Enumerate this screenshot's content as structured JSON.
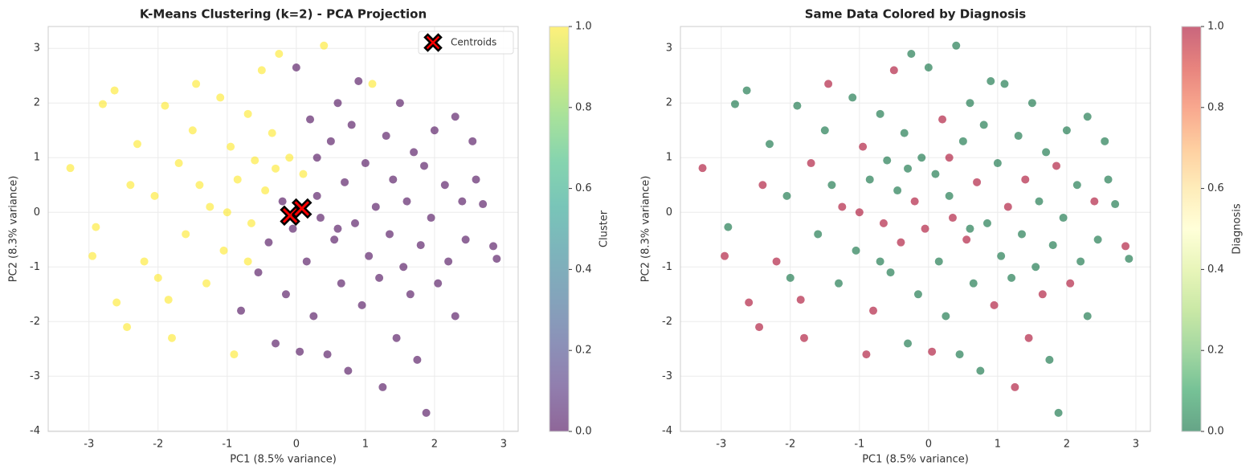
{
  "chart_data": [
    {
      "type": "scatter",
      "title": "K-Means Clustering (k=2) - PCA Projection",
      "xlabel": "PC1 (8.5% variance)",
      "ylabel": "PC2 (8.3% variance)",
      "x": [
        -3.27,
        -2.95,
        -2.9,
        -2.8,
        -2.63,
        -2.6,
        -2.45,
        -2.4,
        -2.3,
        -2.2,
        -2.05,
        -1.9,
        -1.85,
        -1.8,
        -1.7,
        -1.6,
        -1.5,
        -1.45,
        -1.3,
        -1.25,
        -1.1,
        -1.05,
        -0.95,
        -0.9,
        -0.85,
        -0.8,
        -0.7,
        -0.65,
        -0.6,
        -0.55,
        -0.5,
        -0.45,
        -0.4,
        -0.35,
        -0.3,
        -0.25,
        -0.2,
        -0.15,
        -0.1,
        -0.05,
        0.0,
        0.05,
        0.1,
        0.15,
        0.2,
        0.25,
        0.3,
        0.35,
        0.4,
        0.45,
        0.5,
        0.55,
        0.6,
        0.65,
        0.7,
        0.75,
        0.8,
        0.85,
        0.9,
        0.95,
        1.0,
        1.05,
        1.1,
        1.15,
        1.2,
        1.25,
        1.3,
        1.35,
        1.4,
        1.45,
        1.5,
        1.55,
        1.6,
        1.65,
        1.7,
        1.75,
        1.8,
        1.85,
        1.88,
        1.95,
        2.0,
        2.05,
        2.15,
        2.2,
        2.3,
        2.3,
        2.4,
        2.45,
        2.55,
        2.6,
        2.7,
        2.85,
        2.9,
        -1.0,
        -0.7,
        -1.4,
        0.3,
        -0.3,
        0.6,
        -2.0
      ],
      "y": [
        0.81,
        -0.8,
        -0.27,
        1.98,
        2.23,
        -1.65,
        -2.1,
        0.5,
        1.25,
        -0.9,
        0.3,
        1.95,
        -1.6,
        -2.3,
        0.9,
        -0.4,
        1.5,
        2.35,
        -1.3,
        0.1,
        2.1,
        -0.7,
        1.2,
        -2.6,
        0.6,
        -1.8,
        1.8,
        -0.2,
        0.95,
        -1.1,
        2.6,
        0.4,
        -0.55,
        1.45,
        -2.4,
        2.9,
        0.2,
        -1.5,
        1.0,
        -0.3,
        2.65,
        -2.55,
        0.7,
        -0.9,
        1.7,
        -1.9,
        0.3,
        -0.1,
        3.05,
        -2.6,
        1.3,
        -0.5,
        2.0,
        -1.3,
        0.55,
        -2.9,
        1.6,
        -0.2,
        2.4,
        -1.7,
        0.9,
        -0.8,
        2.35,
        0.1,
        -1.2,
        -3.2,
        1.4,
        -0.4,
        0.6,
        -2.3,
        2.0,
        -1.0,
        0.2,
        -1.5,
        1.1,
        -2.7,
        -0.6,
        0.85,
        -3.67,
        -0.1,
        1.5,
        -1.3,
        0.5,
        -0.9,
        1.75,
        -1.9,
        0.2,
        -0.5,
        1.3,
        0.6,
        0.15,
        -0.62,
        -0.85,
        0.0,
        -0.9,
        0.5,
        1.0,
        0.8,
        -0.3,
        -1.2
      ],
      "c": [
        1,
        1,
        1,
        1,
        1,
        1,
        1,
        1,
        1,
        1,
        1,
        1,
        1,
        1,
        1,
        1,
        1,
        1,
        1,
        1,
        1,
        1,
        1,
        1,
        1,
        0,
        1,
        1,
        1,
        0,
        1,
        1,
        0,
        1,
        0,
        1,
        0,
        0,
        1,
        0,
        0,
        0,
        1,
        0,
        0,
        0,
        0,
        0,
        1,
        0,
        0,
        0,
        0,
        0,
        0,
        0,
        0,
        0,
        0,
        0,
        0,
        0,
        1,
        0,
        0,
        0,
        0,
        0,
        0,
        0,
        0,
        0,
        0,
        0,
        0,
        0,
        0,
        0,
        0,
        0,
        0,
        0,
        0,
        0,
        0,
        0,
        0,
        0,
        0,
        0,
        0,
        0,
        0,
        1,
        1,
        1,
        0,
        1,
        0,
        1
      ],
      "colormap": [
        "#440154",
        "#482878",
        "#3e4989",
        "#31688e",
        "#26828e",
        "#1f9e89",
        "#35b779",
        "#6ece58",
        "#b5de2b",
        "#fde725"
      ],
      "clim": [
        0,
        1
      ],
      "colorbar_label": "Cluster",
      "cticks": [
        {
          "value": 0,
          "label": "0.0"
        },
        {
          "value": 0.2,
          "label": "0.2"
        },
        {
          "value": 0.4,
          "label": "0.4"
        },
        {
          "value": 0.6,
          "label": "0.6"
        },
        {
          "value": 0.8,
          "label": "0.8"
        },
        {
          "value": 1,
          "label": "1.0"
        }
      ],
      "xlim": [
        -3.59,
        3.21
      ],
      "ylim": [
        -4.01,
        3.4
      ],
      "xticks": [
        -3,
        -2,
        -1,
        0,
        1,
        2,
        3
      ],
      "yticks": [
        -4,
        -3,
        -2,
        -1,
        0,
        1,
        2,
        3
      ],
      "grid": true,
      "centroids": {
        "name": "Centroids",
        "x": [
          -0.09,
          0.08
        ],
        "y": [
          -0.06,
          0.07
        ],
        "color": "#ff0000"
      },
      "legend": "upper right"
    },
    {
      "type": "scatter",
      "title": "Same Data Colored by Diagnosis",
      "xlabel": "PC1 (8.5% variance)",
      "ylabel": "PC2 (8.3% variance)",
      "x": [
        -3.27,
        -2.95,
        -2.9,
        -2.8,
        -2.63,
        -2.6,
        -2.45,
        -2.4,
        -2.3,
        -2.2,
        -2.05,
        -1.9,
        -1.85,
        -1.8,
        -1.7,
        -1.6,
        -1.5,
        -1.45,
        -1.3,
        -1.25,
        -1.1,
        -1.05,
        -0.95,
        -0.9,
        -0.85,
        -0.8,
        -0.7,
        -0.65,
        -0.6,
        -0.55,
        -0.5,
        -0.45,
        -0.4,
        -0.35,
        -0.3,
        -0.25,
        -0.2,
        -0.15,
        -0.1,
        -0.05,
        0.0,
        0.05,
        0.1,
        0.15,
        0.2,
        0.25,
        0.3,
        0.35,
        0.4,
        0.45,
        0.5,
        0.55,
        0.6,
        0.65,
        0.7,
        0.75,
        0.8,
        0.85,
        0.9,
        0.95,
        1.0,
        1.05,
        1.1,
        1.15,
        1.2,
        1.25,
        1.3,
        1.35,
        1.4,
        1.45,
        1.5,
        1.55,
        1.6,
        1.65,
        1.7,
        1.75,
        1.8,
        1.85,
        1.88,
        1.95,
        2.0,
        2.05,
        2.15,
        2.2,
        2.3,
        2.3,
        2.4,
        2.45,
        2.55,
        2.6,
        2.7,
        2.85,
        2.9,
        -1.0,
        -0.7,
        -1.4,
        0.3,
        -0.3,
        0.6,
        -2.0
      ],
      "y": [
        0.81,
        -0.8,
        -0.27,
        1.98,
        2.23,
        -1.65,
        -2.1,
        0.5,
        1.25,
        -0.9,
        0.3,
        1.95,
        -1.6,
        -2.3,
        0.9,
        -0.4,
        1.5,
        2.35,
        -1.3,
        0.1,
        2.1,
        -0.7,
        1.2,
        -2.6,
        0.6,
        -1.8,
        1.8,
        -0.2,
        0.95,
        -1.1,
        2.6,
        0.4,
        -0.55,
        1.45,
        -2.4,
        2.9,
        0.2,
        -1.5,
        1.0,
        -0.3,
        2.65,
        -2.55,
        0.7,
        -0.9,
        1.7,
        -1.9,
        0.3,
        -0.1,
        3.05,
        -2.6,
        1.3,
        -0.5,
        2.0,
        -1.3,
        0.55,
        -2.9,
        1.6,
        -0.2,
        2.4,
        -1.7,
        0.9,
        -0.8,
        2.35,
        0.1,
        -1.2,
        -3.2,
        1.4,
        -0.4,
        0.6,
        -2.3,
        2.0,
        -1.0,
        0.2,
        -1.5,
        1.1,
        -2.7,
        -0.6,
        0.85,
        -3.67,
        -0.1,
        1.5,
        -1.3,
        0.5,
        -0.9,
        1.75,
        -1.9,
        0.2,
        -0.5,
        1.3,
        0.6,
        0.15,
        -0.62,
        -0.85,
        0.0,
        -0.9,
        0.5,
        1.0,
        0.8,
        -0.3,
        -1.2
      ],
      "c": [
        1,
        1,
        0,
        0,
        0,
        1,
        1,
        1,
        0,
        1,
        0,
        0,
        1,
        1,
        1,
        0,
        0,
        1,
        0,
        1,
        0,
        0,
        1,
        1,
        0,
        1,
        0,
        1,
        0,
        0,
        1,
        0,
        1,
        0,
        0,
        0,
        1,
        0,
        0,
        1,
        0,
        1,
        0,
        0,
        1,
        0,
        0,
        1,
        0,
        0,
        0,
        1,
        0,
        0,
        1,
        0,
        0,
        0,
        0,
        1,
        0,
        0,
        0,
        1,
        0,
        1,
        0,
        0,
        1,
        1,
        0,
        0,
        0,
        1,
        0,
        0,
        0,
        1,
        0,
        0,
        0,
        1,
        0,
        0,
        0,
        0,
        1,
        0,
        0,
        0,
        0,
        1,
        0,
        1,
        0,
        0,
        1,
        0,
        0,
        0
      ],
      "colormap": [
        "#006837",
        "#1a9850",
        "#66bd63",
        "#a6d96a",
        "#d9ef8b",
        "#ffffbf",
        "#fee08b",
        "#fdae61",
        "#f46d43",
        "#d73027",
        "#a50026"
      ],
      "clim": [
        0,
        1
      ],
      "colorbar_label": "Diagnosis",
      "cticks": [
        {
          "value": 0,
          "label": "0.0"
        },
        {
          "value": 0.2,
          "label": "0.2"
        },
        {
          "value": 0.4,
          "label": "0.4"
        },
        {
          "value": 0.6,
          "label": "0.6"
        },
        {
          "value": 0.8,
          "label": "0.8"
        },
        {
          "value": 1,
          "label": "1.0"
        }
      ],
      "xlim": [
        -3.59,
        3.21
      ],
      "ylim": [
        -4.01,
        3.4
      ],
      "xticks": [
        -3,
        -2,
        -1,
        0,
        1,
        2,
        3
      ],
      "yticks": [
        -4,
        -3,
        -2,
        -1,
        0,
        1,
        2,
        3
      ],
      "grid": true
    }
  ]
}
